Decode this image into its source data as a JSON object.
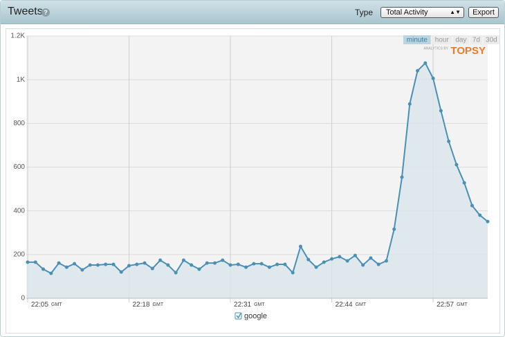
{
  "header": {
    "title": "Tweets",
    "type_label": "Type",
    "type_select": "Total Activity",
    "export": "Export"
  },
  "chart_data": {
    "type": "line",
    "categories": [
      "22:05",
      null,
      null,
      null,
      null,
      null,
      null,
      null,
      null,
      null,
      null,
      null,
      null,
      "22:18",
      null,
      null,
      null,
      null,
      null,
      null,
      null,
      null,
      null,
      null,
      null,
      null,
      "22:31",
      null,
      null,
      null,
      null,
      null,
      null,
      null,
      null,
      null,
      null,
      null,
      null,
      "22:44",
      null,
      null,
      null,
      null,
      null,
      null,
      null,
      null,
      null,
      null,
      null,
      null,
      "22:57",
      null,
      null,
      null,
      null,
      null,
      null,
      null
    ],
    "x_unit": "GMT",
    "series": [
      {
        "name": "google",
        "color": "#4a8fb5",
        "values": [
          165,
          165,
          133,
          114,
          161,
          142,
          158,
          130,
          152,
          152,
          155,
          155,
          120,
          149,
          155,
          161,
          136,
          174,
          152,
          117,
          174,
          152,
          133,
          161,
          161,
          174,
          152,
          155,
          142,
          158,
          158,
          142,
          155,
          155,
          117,
          237,
          177,
          142,
          165,
          180,
          190,
          171,
          196,
          152,
          184,
          155,
          171,
          316,
          554,
          889,
          1041,
          1076,
          1006,
          858,
          718,
          611,
          528,
          424,
          380,
          351
        ]
      }
    ],
    "ylim": [
      0,
      1200
    ],
    "yticks": [
      0,
      200,
      400,
      600,
      800,
      {
        "value": 1000,
        "label": "1K"
      },
      {
        "value": 1200,
        "label": "1.2K"
      }
    ],
    "grid": true,
    "range_options": [
      "minute",
      "hour",
      "day",
      "7d",
      "30d"
    ],
    "selected_range": "minute",
    "brand": {
      "prefix": "ANALYTICS BY",
      "name": "TOPSY"
    }
  }
}
